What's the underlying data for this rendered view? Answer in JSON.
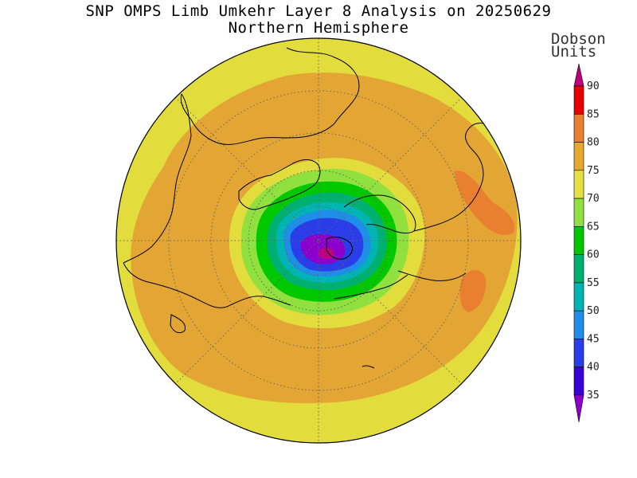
{
  "title": {
    "line1": "SNP OMPS Limb Umkehr Layer 8 Analysis on 20250629",
    "line2": "Northern Hemisphere"
  },
  "colorbar": {
    "units_line1": "Dobson",
    "units_line2": "Units",
    "levels": [
      "35",
      "40",
      "45",
      "50",
      "55",
      "60",
      "65",
      "70",
      "75",
      "80",
      "85",
      "90"
    ],
    "colors": [
      "#8b00cc",
      "#3a00d8",
      "#2a3de8",
      "#1e8ee8",
      "#00b4b4",
      "#00b070",
      "#00c800",
      "#90e040",
      "#e8e040",
      "#e8a830",
      "#e88030",
      "#e80000",
      "#c00080"
    ]
  },
  "map": {
    "projection": "north polar stereographic",
    "field_colors": {
      "outer": "#e2dc3c",
      "mid": "#e3a634",
      "high": "#e88030"
    }
  }
}
